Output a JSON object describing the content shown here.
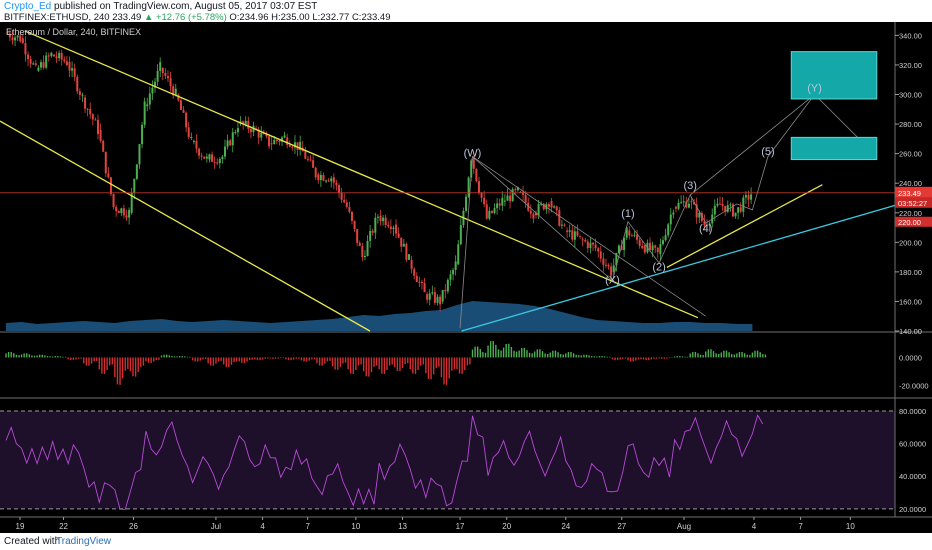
{
  "header": {
    "author": "Crypto_Ed",
    "published": "published on TradingView.com, August 05, 2017 03:07 EST",
    "symbol": "BITFINEX:ETHUSD, 240",
    "last": "233.49",
    "change": "▲ +12.76 (+5.78%)",
    "ohlc": "O:234.96 H:235.00 L:232.77 C:233.49"
  },
  "footer": {
    "created_with": "Created with",
    "brand": "TradingView"
  },
  "chart_data": {
    "type": "candlestick",
    "title": "Ethereum / Dollar, 240, BITFINEX",
    "price_axis": {
      "ticks": [
        "340.00",
        "320.00",
        "300.00",
        "280.00",
        "260.00",
        "240.00",
        "220.00",
        "200.00",
        "180.00",
        "160.00",
        "140.00"
      ],
      "ylim": [
        140,
        345
      ]
    },
    "last_price": {
      "value": 233.49,
      "label": "233.49",
      "countdown": "03:52:27"
    },
    "support_label": "220.00",
    "x_axis_labels": [
      "19",
      "22",
      "26",
      "Jul",
      "4",
      "7",
      "10",
      "13",
      "17",
      "20",
      "24",
      "27",
      "Aug",
      "4",
      "7",
      "10"
    ],
    "series_close": [
      {
        "day": 0,
        "close": 342
      },
      {
        "day": 1,
        "close": 338
      },
      {
        "day": 2,
        "close": 316
      },
      {
        "day": 3,
        "close": 327
      },
      {
        "day": 4,
        "close": 322
      },
      {
        "day": 5,
        "close": 298
      },
      {
        "day": 6,
        "close": 276
      },
      {
        "day": 7,
        "close": 224
      },
      {
        "day": 8,
        "close": 220
      },
      {
        "day": 9,
        "close": 292
      },
      {
        "day": 10,
        "close": 318
      },
      {
        "day": 11,
        "close": 300
      },
      {
        "day": 12,
        "close": 268
      },
      {
        "day": 13,
        "close": 256
      },
      {
        "day": 14,
        "close": 258
      },
      {
        "day": 15,
        "close": 280
      },
      {
        "day": 16,
        "close": 277
      },
      {
        "day": 17,
        "close": 267
      },
      {
        "day": 18,
        "close": 271
      },
      {
        "day": 19,
        "close": 264
      },
      {
        "day": 20,
        "close": 246
      },
      {
        "day": 21,
        "close": 244
      },
      {
        "day": 22,
        "close": 224
      },
      {
        "day": 23,
        "close": 190
      },
      {
        "day": 24,
        "close": 218
      },
      {
        "day": 25,
        "close": 212
      },
      {
        "day": 26,
        "close": 188
      },
      {
        "day": 27,
        "close": 165
      },
      {
        "day": 28,
        "close": 160
      },
      {
        "day": 29,
        "close": 185
      },
      {
        "day": 30,
        "close": 258
      },
      {
        "day": 31,
        "close": 216
      },
      {
        "day": 32,
        "close": 228
      },
      {
        "day": 33,
        "close": 234
      },
      {
        "day": 34,
        "close": 220
      },
      {
        "day": 35,
        "close": 228
      },
      {
        "day": 36,
        "close": 208
      },
      {
        "day": 37,
        "close": 202
      },
      {
        "day": 38,
        "close": 196
      },
      {
        "day": 39,
        "close": 180
      },
      {
        "day": 40,
        "close": 208
      },
      {
        "day": 41,
        "close": 198
      },
      {
        "day": 42,
        "close": 192
      },
      {
        "day": 43,
        "close": 224
      },
      {
        "day": 44,
        "close": 228
      },
      {
        "day": 45,
        "close": 212
      },
      {
        "day": 46,
        "close": 226
      },
      {
        "day": 47,
        "close": 220
      },
      {
        "day": 48,
        "close": 233
      }
    ],
    "annotations": [
      {
        "label": "(W)",
        "day": 30,
        "price": 258
      },
      {
        "label": "(X)",
        "day": 39,
        "price": 172
      },
      {
        "label": "(1)",
        "day": 40,
        "price": 217
      },
      {
        "label": "(2)",
        "day": 42,
        "price": 181
      },
      {
        "label": "(3)",
        "day": 44,
        "price": 236
      },
      {
        "label": "(4)",
        "day": 45,
        "price": 207
      },
      {
        "label": "(5)",
        "day": 49,
        "price": 259
      },
      {
        "label": "(Y)",
        "day": 52,
        "price": 302
      }
    ],
    "target_boxes": [
      {
        "from_day": 50.5,
        "to_day": 56,
        "low": 297,
        "high": 329
      },
      {
        "from_day": 50.5,
        "to_day": 56,
        "low": 256,
        "high": 271
      }
    ],
    "indicator_1": {
      "ticks": [
        "0.0000",
        "-20.0000"
      ],
      "ylim": [
        -28,
        18
      ]
    },
    "indicator_2": {
      "ticks": [
        "80.0000",
        "60.0000",
        "40.0000",
        "20.0000"
      ],
      "ylim": [
        15,
        88
      ],
      "bands": [
        80,
        20
      ]
    }
  }
}
